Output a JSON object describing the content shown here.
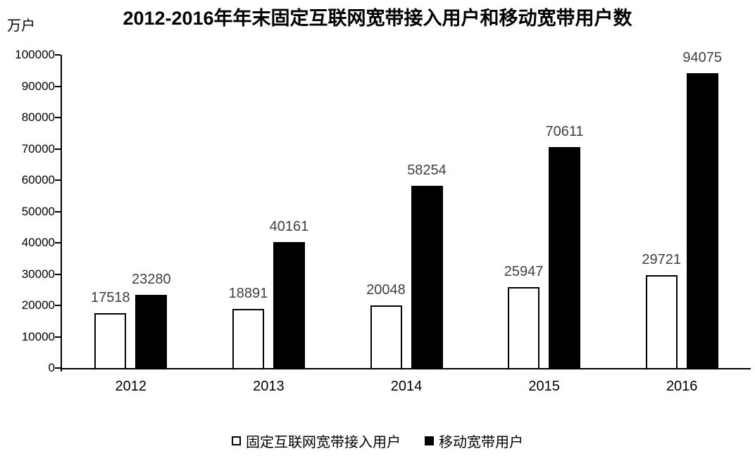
{
  "chart_data": {
    "type": "bar",
    "title": "2012-2016年年末固定互联网宽带接入用户和移动宽带用户数",
    "unit_label": "万户",
    "categories": [
      "2012",
      "2013",
      "2014",
      "2015",
      "2016"
    ],
    "series": [
      {
        "name": "固定互联网宽带接入用户",
        "style": "white-outlined",
        "values": [
          17518,
          18891,
          20048,
          25947,
          29721
        ]
      },
      {
        "name": "移动宽带用户",
        "style": "black-solid",
        "values": [
          23280,
          40161,
          58254,
          70611,
          94075
        ]
      }
    ],
    "ylim": [
      0,
      100000
    ],
    "ytick_step": 10000,
    "yticks": [
      0,
      10000,
      20000,
      30000,
      40000,
      50000,
      60000,
      70000,
      80000,
      90000,
      100000
    ],
    "grid": "off",
    "data_labels": "above-bars",
    "legend_position": "bottom-center",
    "colors": {
      "fixed_series_fill": "#ffffff",
      "fixed_series_border": "#000000",
      "mobile_series_fill": "#000000",
      "data_label_color": "#404040",
      "axis_color": "#000000",
      "background": "#ffffff"
    }
  }
}
